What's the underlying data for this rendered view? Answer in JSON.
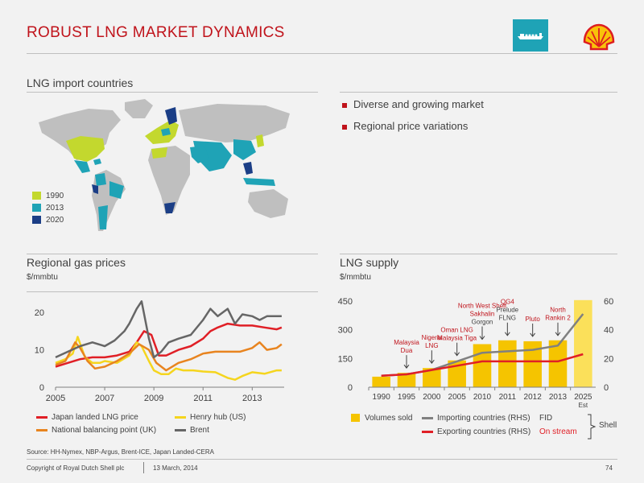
{
  "header": {
    "title": "ROBUST LNG MARKET DYNAMICS",
    "ship_icon": "lng-tanker-icon",
    "logo_icon": "shell-pecten-logo"
  },
  "map_panel": {
    "title": "LNG import countries",
    "legend": [
      {
        "label": "1990",
        "color": "#c3d82e"
      },
      {
        "label": "2013",
        "color": "#1fa3b6"
      },
      {
        "label": "2020",
        "color": "#1b3e86"
      }
    ]
  },
  "bullets": [
    "Diverse and growing market",
    "Regional price variations"
  ],
  "prices_panel": {
    "title": "Regional gas prices",
    "unit": "$/mmbtu",
    "legend": [
      {
        "label": "Japan landed LNG price",
        "color": "#e01f26"
      },
      {
        "label": "Henry hub (US)",
        "color": "#f5d51e"
      },
      {
        "label": "National balancing point (UK)",
        "color": "#e8841f"
      },
      {
        "label": "Brent",
        "color": "#666666"
      }
    ]
  },
  "supply_panel": {
    "title": "LNG supply",
    "unit": "$/mmbtu",
    "legend": {
      "volumes": "Volumes sold",
      "importing": "Importing countries (RHS)",
      "exporting": "Exporting countries (RHS)",
      "fid": "FID",
      "on_stream": "On stream",
      "shell": "Shell"
    }
  },
  "chart_data": [
    {
      "type": "line",
      "title": "Regional gas prices",
      "ylabel": "$/mmbtu",
      "ylim": [
        0,
        25
      ],
      "yticks": [
        "0",
        "10",
        "20"
      ],
      "xlim": [
        2005,
        2014.3
      ],
      "xticks": [
        "2005",
        "2007",
        "2009",
        "2011",
        "2013"
      ],
      "series": [
        {
          "name": "Japan landed LNG price",
          "color": "#e01f26",
          "x": [
            2005,
            2005.5,
            2006,
            2006.5,
            2007,
            2007.5,
            2008,
            2008.3,
            2008.6,
            2008.9,
            2009.2,
            2009.5,
            2010,
            2010.5,
            2011,
            2011.3,
            2011.6,
            2012,
            2012.5,
            2013,
            2013.5,
            2014,
            2014.2
          ],
          "y": [
            5.5,
            6.5,
            7.5,
            8,
            8,
            8.5,
            9.5,
            12,
            15,
            14,
            8.5,
            8.5,
            10,
            11,
            13,
            15,
            16,
            17,
            16.5,
            16.5,
            16,
            15.5,
            16
          ]
        },
        {
          "name": "Henry hub (US)",
          "color": "#f5d51e",
          "x": [
            2005,
            2005.4,
            2005.7,
            2005.9,
            2006.2,
            2006.5,
            2006.8,
            2007,
            2007.5,
            2008,
            2008.3,
            2008.5,
            2008.8,
            2009,
            2009.3,
            2009.6,
            2009.9,
            2010.2,
            2010.6,
            2011,
            2011.5,
            2012,
            2012.3,
            2012.6,
            2013,
            2013.5,
            2014,
            2014.2
          ],
          "y": [
            6.5,
            7.5,
            9,
            13.5,
            8,
            6.5,
            6.5,
            7,
            6.5,
            8.5,
            12,
            11,
            7,
            4.5,
            3.5,
            3.5,
            5,
            4.5,
            4.5,
            4.2,
            4,
            2.5,
            2,
            3,
            4,
            3.6,
            4.5,
            4.5
          ]
        },
        {
          "name": "National balancing point (UK)",
          "color": "#e8841f",
          "x": [
            2005,
            2005.4,
            2005.8,
            2006,
            2006.3,
            2006.6,
            2007,
            2007.5,
            2008,
            2008.4,
            2008.8,
            2009.1,
            2009.5,
            2010,
            2010.5,
            2011,
            2011.5,
            2012,
            2012.5,
            2013,
            2013.3,
            2013.6,
            2014,
            2014.2
          ],
          "y": [
            6,
            7,
            12,
            10.5,
            7,
            5,
            5.5,
            7,
            9,
            11.5,
            10,
            6.5,
            4.5,
            6.5,
            7.5,
            9,
            9.5,
            9.5,
            9.5,
            10.5,
            12,
            10,
            10.5,
            11.5
          ]
        },
        {
          "name": "Brent",
          "color": "#666666",
          "x": [
            2005,
            2005.5,
            2006,
            2006.5,
            2007,
            2007.4,
            2007.8,
            2008,
            2008.3,
            2008.5,
            2008.8,
            2009,
            2009.3,
            2009.6,
            2010,
            2010.5,
            2011,
            2011.3,
            2011.6,
            2012,
            2012.3,
            2012.6,
            2013,
            2013.3,
            2013.6,
            2014,
            2014.2
          ],
          "y": [
            8,
            9.5,
            11,
            12,
            11,
            12.5,
            15,
            17,
            21,
            23,
            13,
            8,
            9.5,
            12,
            13,
            14,
            18,
            21,
            19,
            21,
            17,
            19.5,
            19,
            18,
            19,
            19,
            19
          ]
        }
      ]
    },
    {
      "type": "bar",
      "title": "LNG supply",
      "categories": [
        "1990",
        "1995",
        "2000",
        "2005",
        "2010",
        "2011",
        "2012",
        "2013",
        "2025 Est"
      ],
      "volumes": [
        55,
        75,
        100,
        140,
        225,
        245,
        240,
        245,
        455
      ],
      "ylim_left": [
        0,
        450
      ],
      "yticks_left": [
        "0",
        "150",
        "300",
        "450"
      ],
      "ylim_right": [
        0,
        60
      ],
      "yticks_right": [
        "0",
        "20",
        "40",
        "60"
      ],
      "series": [
        {
          "name": "Importing countries (RHS)",
          "color": "#808080",
          "values": [
            8,
            9,
            12,
            18,
            24,
            25,
            26,
            29,
            51
          ]
        },
        {
          "name": "Exporting countries (RHS)",
          "color": "#e01f26",
          "values": [
            8,
            9,
            12,
            15,
            18,
            18,
            18,
            18,
            23
          ]
        }
      ],
      "annotations": [
        {
          "category": "1995",
          "lines": [
            "Malaysia",
            "Dua"
          ],
          "status": "on_stream"
        },
        {
          "category": "2000",
          "lines": [
            "Nigeria",
            "LNG"
          ],
          "status": "on_stream"
        },
        {
          "category": "2005",
          "lines": [
            "Oman LNG",
            "Malaysia Tiga"
          ],
          "status": "on_stream"
        },
        {
          "category": "2010",
          "lines": [
            "North West Shelf",
            "Sakhalin",
            "Gorgon"
          ],
          "status": "mixed"
        },
        {
          "category": "2011",
          "lines": [
            "QG4",
            "Prelude",
            "FLNG"
          ],
          "status": "mixed"
        },
        {
          "category": "2012",
          "lines": [
            "Pluto"
          ],
          "status": "on_stream"
        },
        {
          "category": "2013",
          "lines": [
            "North",
            "Rankin 2"
          ],
          "status": "on_stream"
        }
      ]
    }
  ],
  "footer": {
    "source": "Source: HH-Nymex, NBP-Argus, Brent-ICE, Japan Landed-CERA",
    "copyright": "Copyright of Royal Dutch Shell plc",
    "date": "13 March, 2014",
    "page": "74"
  }
}
